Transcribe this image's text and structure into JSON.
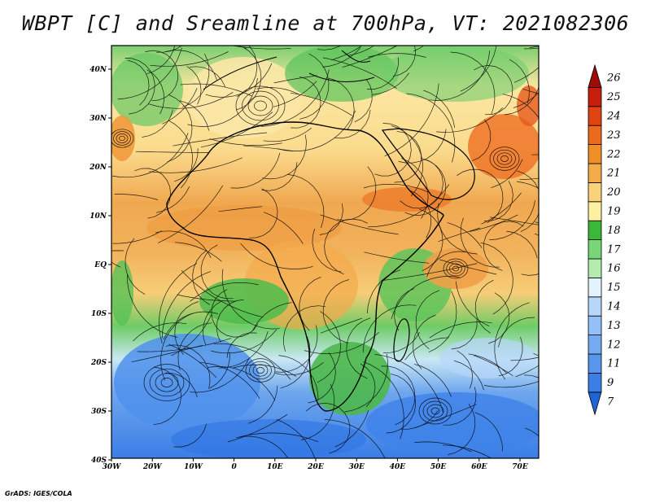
{
  "title": "WBPT [C] and Sreamline at 700hPa, VT: 2021082306",
  "credit": "GrADS: IGES/COLA",
  "lat_labels": [
    "40N",
    "30N",
    "20N",
    "10N",
    "EQ",
    "10S",
    "20S",
    "30S",
    "40S"
  ],
  "lon_labels": [
    "30W",
    "20W",
    "10W",
    "0",
    "10E",
    "20E",
    "30E",
    "40E",
    "50E",
    "60E",
    "70E"
  ],
  "colorbar": {
    "levels": [
      "7",
      "9",
      "11",
      "12",
      "13",
      "14",
      "15",
      "16",
      "17",
      "18",
      "19",
      "20",
      "21",
      "22",
      "23",
      "24",
      "25",
      "26"
    ],
    "colors": [
      "#1e64d8",
      "#3a7ee6",
      "#5896ee",
      "#74aaf2",
      "#93c0f6",
      "#b7d6fa",
      "#e3f3fb",
      "#b4ecb0",
      "#78d678",
      "#3cb73c",
      "#fff0a0",
      "#fad27a",
      "#f4ac4a",
      "#f08e28",
      "#ec6a1c",
      "#e04414",
      "#c81e0e",
      "#a00a0a"
    ]
  }
}
